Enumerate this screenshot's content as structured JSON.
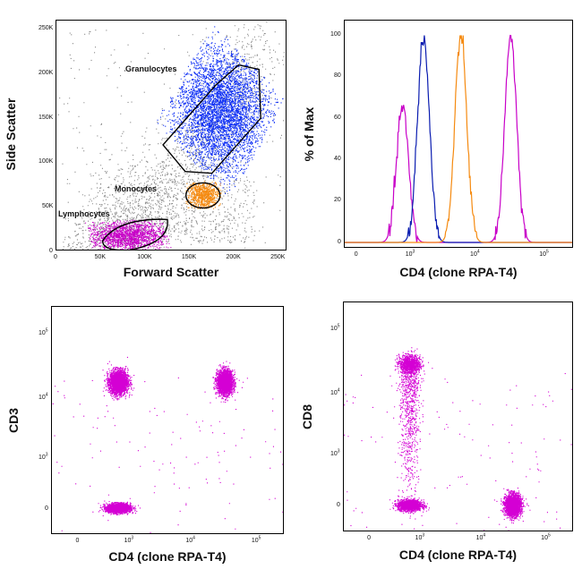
{
  "chart_data": [
    {
      "type": "scatter",
      "id": "scatter-gates",
      "xlabel": "Forward Scatter",
      "ylabel": "Side Scatter",
      "xlim": [
        0,
        260000
      ],
      "ylim": [
        0,
        260000
      ],
      "xticks": [
        {
          "v": 0,
          "l": "0"
        },
        {
          "v": 50000,
          "l": "50K"
        },
        {
          "v": 100000,
          "l": "100K"
        },
        {
          "v": 150000,
          "l": "150K"
        },
        {
          "v": 200000,
          "l": "200K"
        },
        {
          "v": 250000,
          "l": "250K"
        }
      ],
      "yticks": [
        {
          "v": 0,
          "l": "0"
        },
        {
          "v": 50000,
          "l": "50K"
        },
        {
          "v": 100000,
          "l": "100K"
        },
        {
          "v": 150000,
          "l": "150K"
        },
        {
          "v": 200000,
          "l": "200K"
        },
        {
          "v": 250000,
          "l": "250K"
        }
      ],
      "colors": {
        "events": "#8a8a8a",
        "granulocytes": "#0a2cf5",
        "monocytes": "#f58a10",
        "lymphocytes": "#c800c8"
      },
      "gates": [
        {
          "name": "Granulocytes",
          "color": "#0a2cf5",
          "center": [
            185000,
            158000
          ],
          "spread": [
            24000,
            32000
          ]
        },
        {
          "name": "Monocytes",
          "color": "#f58a10",
          "center": [
            165000,
            64000
          ],
          "spread": [
            9000,
            7000
          ]
        },
        {
          "name": "Lymphocytes",
          "color": "#c800c8",
          "center": [
            80000,
            18000
          ],
          "spread": [
            20000,
            8000
          ]
        }
      ]
    },
    {
      "type": "line",
      "id": "histogram-cd4",
      "xlabel": "CD4 (clone RPA-T4)",
      "ylabel": "% of Max",
      "xscale": "biexponential",
      "ylim": [
        0,
        105
      ],
      "xticks": [
        {
          "v": "0",
          "l": "0"
        },
        {
          "v": "1000",
          "l": "10",
          "sup": "3"
        },
        {
          "v": "10000",
          "l": "10",
          "sup": "4"
        },
        {
          "v": "100000",
          "l": "10",
          "sup": "5"
        }
      ],
      "yticks": [
        0,
        20,
        40,
        60,
        80,
        100
      ],
      "series": [
        {
          "color": "#c800c8",
          "peaks": [
            {
              "x": 700,
              "height": 66
            },
            {
              "x": 32000,
              "height": 100
            }
          ]
        },
        {
          "color": "#0a1cb0",
          "peaks": [
            {
              "x": 1600,
              "height": 100
            }
          ]
        },
        {
          "color": "#f58a10",
          "peaks": [
            {
              "x": 6000,
              "height": 100
            }
          ]
        }
      ]
    },
    {
      "type": "scatter",
      "id": "scatter-cd3",
      "xlabel": "CD4 (clone RPA-T4)",
      "ylabel": "CD3",
      "xscale": "biexponential",
      "yscale": "biexponential",
      "xticks": [
        {
          "v": "0",
          "l": "0"
        },
        {
          "v": "1000",
          "l": "10",
          "sup": "3"
        },
        {
          "v": "10000",
          "l": "10",
          "sup": "4"
        },
        {
          "v": "100000",
          "l": "10",
          "sup": "5"
        }
      ],
      "yticks": [
        {
          "v": "0",
          "l": "0"
        },
        {
          "v": "1000",
          "l": "10",
          "sup": "3"
        },
        {
          "v": "10000",
          "l": "10",
          "sup": "4"
        },
        {
          "v": "100000",
          "l": "10",
          "sup": "5"
        }
      ],
      "color": "#d400d4",
      "clusters": [
        {
          "x": 600,
          "y": 18000
        },
        {
          "x": 32000,
          "y": 18000
        },
        {
          "x": 600,
          "y": 10
        }
      ]
    },
    {
      "type": "scatter",
      "id": "scatter-cd8",
      "xlabel": "CD4 (clone RPA-T4)",
      "ylabel": "CD8",
      "xscale": "biexponential",
      "yscale": "biexponential",
      "xticks": [
        {
          "v": "0",
          "l": "0"
        },
        {
          "v": "1000",
          "l": "10",
          "sup": "3"
        },
        {
          "v": "10000",
          "l": "10",
          "sup": "4"
        },
        {
          "v": "100000",
          "l": "10",
          "sup": "5"
        }
      ],
      "yticks": [
        {
          "v": "0",
          "l": "0"
        },
        {
          "v": "1000",
          "l": "10",
          "sup": "3"
        },
        {
          "v": "10000",
          "l": "10",
          "sup": "4"
        },
        {
          "v": "100000",
          "l": "10",
          "sup": "5"
        }
      ],
      "color": "#d400d4",
      "clusters": [
        {
          "x": 600,
          "y": 30000
        },
        {
          "x": 600,
          "y": 10
        },
        {
          "x": 30000,
          "y": 10
        }
      ]
    }
  ]
}
